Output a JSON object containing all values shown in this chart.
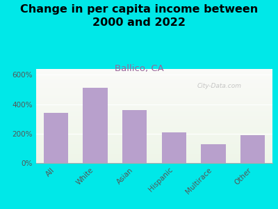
{
  "title": "Change in per capita income between\n2000 and 2022",
  "subtitle": "Ballico, CA",
  "categories": [
    "All",
    "White",
    "Asian",
    "Hispanic",
    "Multirace",
    "Other"
  ],
  "values": [
    340,
    510,
    360,
    210,
    130,
    190
  ],
  "bar_color": "#b8a0cc",
  "background_color": "#00e8e8",
  "plot_bg_color": "#eef5e8",
  "yticks": [
    0,
    200,
    400,
    600
  ],
  "ytick_labels": [
    "0%",
    "200%",
    "400%",
    "600%"
  ],
  "ylim": [
    0,
    640
  ],
  "title_fontsize": 11.5,
  "subtitle_fontsize": 9.5,
  "subtitle_color": "#996699",
  "tick_label_fontsize": 7.5,
  "watermark": "City-Data.com"
}
